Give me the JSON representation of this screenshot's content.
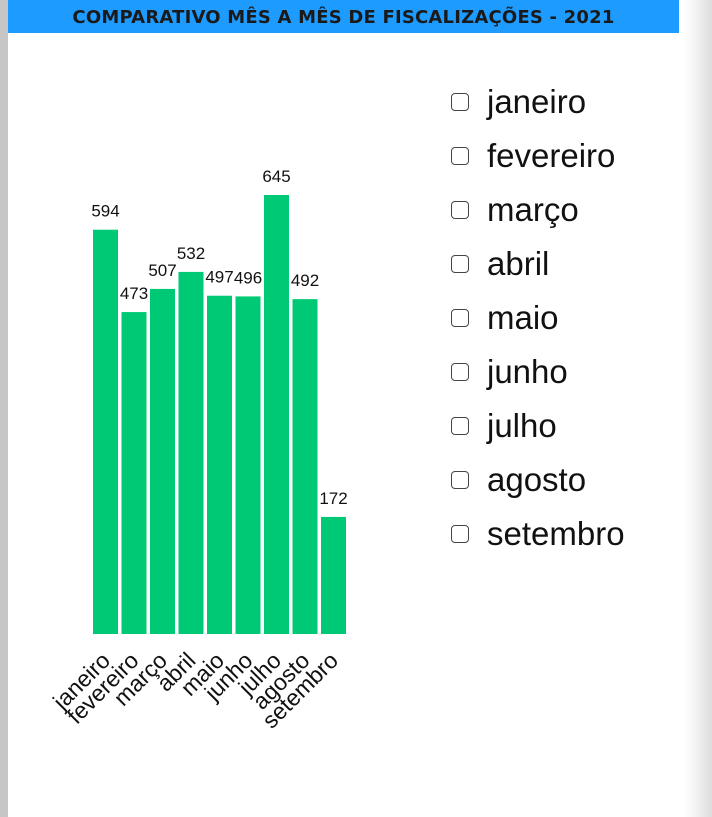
{
  "header": {
    "title": "COMPARATIVO MÊS A MÊS DE FISCALIZAÇÕES - 2021"
  },
  "colors": {
    "bar": "#00c975",
    "title_bar": "#1e9bff"
  },
  "chart_data": {
    "type": "bar",
    "categories": [
      "janeiro",
      "fevereiro",
      "março",
      "abril",
      "maio",
      "junho",
      "julho",
      "agosto",
      "setembro"
    ],
    "values": [
      594,
      473,
      507,
      532,
      497,
      496,
      645,
      492,
      172
    ],
    "title": "COMPARATIVO MÊS A MÊS DE FISCALIZAÇÕES - 2021",
    "xlabel": "",
    "ylabel": "",
    "ylim": [
      0,
      645
    ],
    "grid": false,
    "legend": "right"
  },
  "legend_items": [
    "janeiro",
    "fevereiro",
    "março",
    "abril",
    "maio",
    "junho",
    "julho",
    "agosto",
    "setembro"
  ]
}
